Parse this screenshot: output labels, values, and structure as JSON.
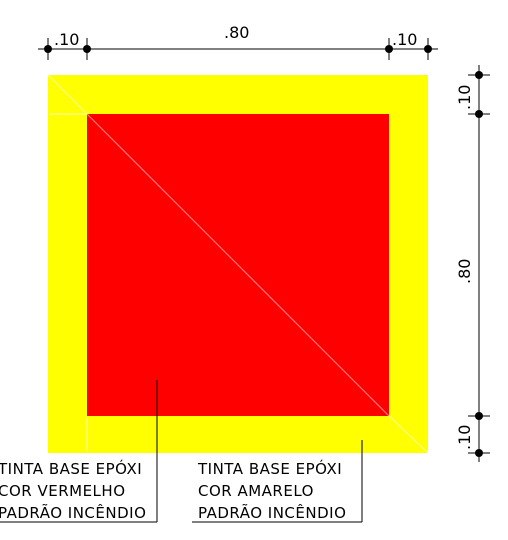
{
  "drawing": {
    "colors": {
      "outer_fill": "#FFFF00",
      "inner_fill": "#FF0000",
      "line": "#000000"
    },
    "dimensions": {
      "top_left": ".10",
      "top_center": ".80",
      "top_right": ".10",
      "right_top": ".10",
      "right_center": ".80",
      "right_bottom": ".10"
    },
    "labels": {
      "red": {
        "line1": "TINTA BASE EPÓXI",
        "line2": "COR VERMELHO",
        "line3": "PADRÃO INCÊNDIO"
      },
      "yellow": {
        "line1": "TINTA BASE EPÓXI",
        "line2": "COR AMARELO",
        "line3": "PADRÃO INCÊNDIO"
      }
    }
  }
}
